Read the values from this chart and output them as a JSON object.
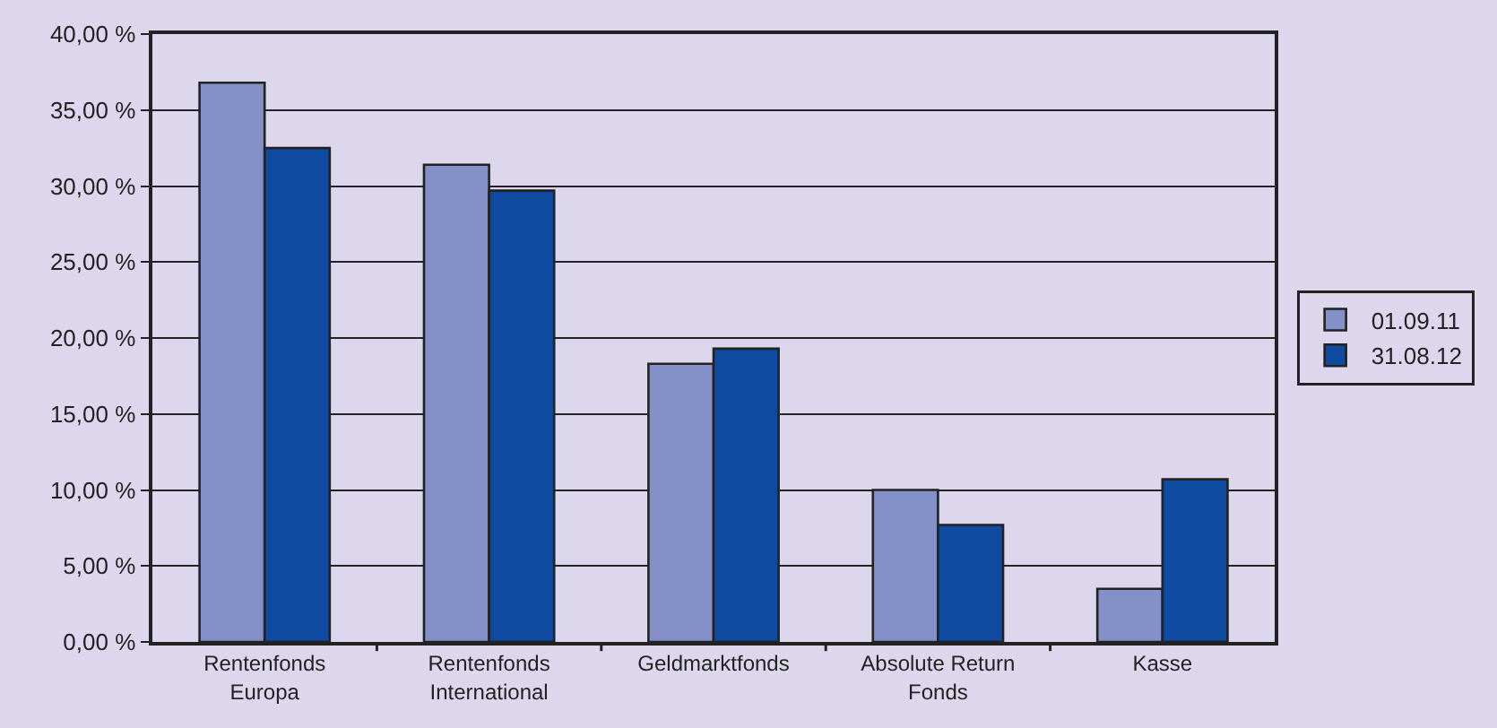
{
  "chart_data": {
    "type": "bar",
    "categories": [
      "Rentenfonds Europa",
      "Rentenfonds International",
      "Geldmarktfonds",
      "Absolute Return Fonds",
      "Kasse"
    ],
    "series": [
      {
        "name": "01.09.11",
        "color": "#8391c8",
        "values": [
          36.8,
          31.4,
          18.3,
          10.0,
          3.5
        ]
      },
      {
        "name": "31.08.12",
        "color": "#0e4ba0",
        "values": [
          32.5,
          29.7,
          19.3,
          7.7,
          10.7
        ]
      }
    ],
    "ylim": [
      0,
      40
    ],
    "yticks": [
      {
        "value": 0,
        "label": "0,00 %"
      },
      {
        "value": 5,
        "label": "5,00 %"
      },
      {
        "value": 10,
        "label": "10,00 %"
      },
      {
        "value": 15,
        "label": "15,00 %"
      },
      {
        "value": 20,
        "label": "20,00 %"
      },
      {
        "value": 25,
        "label": "25,00 %"
      },
      {
        "value": 30,
        "label": "30,00 %"
      },
      {
        "value": 35,
        "label": "35,00 %"
      },
      {
        "value": 40,
        "label": "40,00 %"
      }
    ],
    "grid": "y",
    "legend": "right"
  }
}
